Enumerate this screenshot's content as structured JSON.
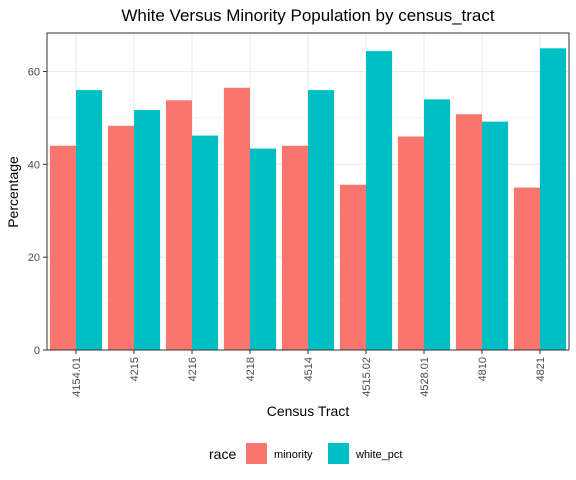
{
  "chart_data": {
    "type": "bar",
    "title": "White Versus Minority Population by census_tract",
    "xlabel": "Census Tract",
    "ylabel": "Percentage",
    "categories": [
      "4154.01",
      "4215",
      "4216",
      "4218",
      "4514",
      "4515.02",
      "4528.01",
      "4810",
      "4821"
    ],
    "series": [
      {
        "name": "minority",
        "color": "#F8766D",
        "values": [
          44.0,
          48.3,
          53.8,
          56.5,
          44.0,
          35.6,
          46.0,
          50.8,
          35.0
        ]
      },
      {
        "name": "white_pct",
        "color": "#00BFC4",
        "values": [
          56.0,
          51.7,
          46.2,
          43.4,
          56.0,
          64.4,
          54.0,
          49.2,
          65.0
        ]
      }
    ],
    "yticks": [
      0,
      20,
      40,
      60
    ],
    "ylim": [
      0,
      68.3
    ],
    "legend": {
      "title": "race",
      "position": "bottom"
    },
    "grid": true
  }
}
